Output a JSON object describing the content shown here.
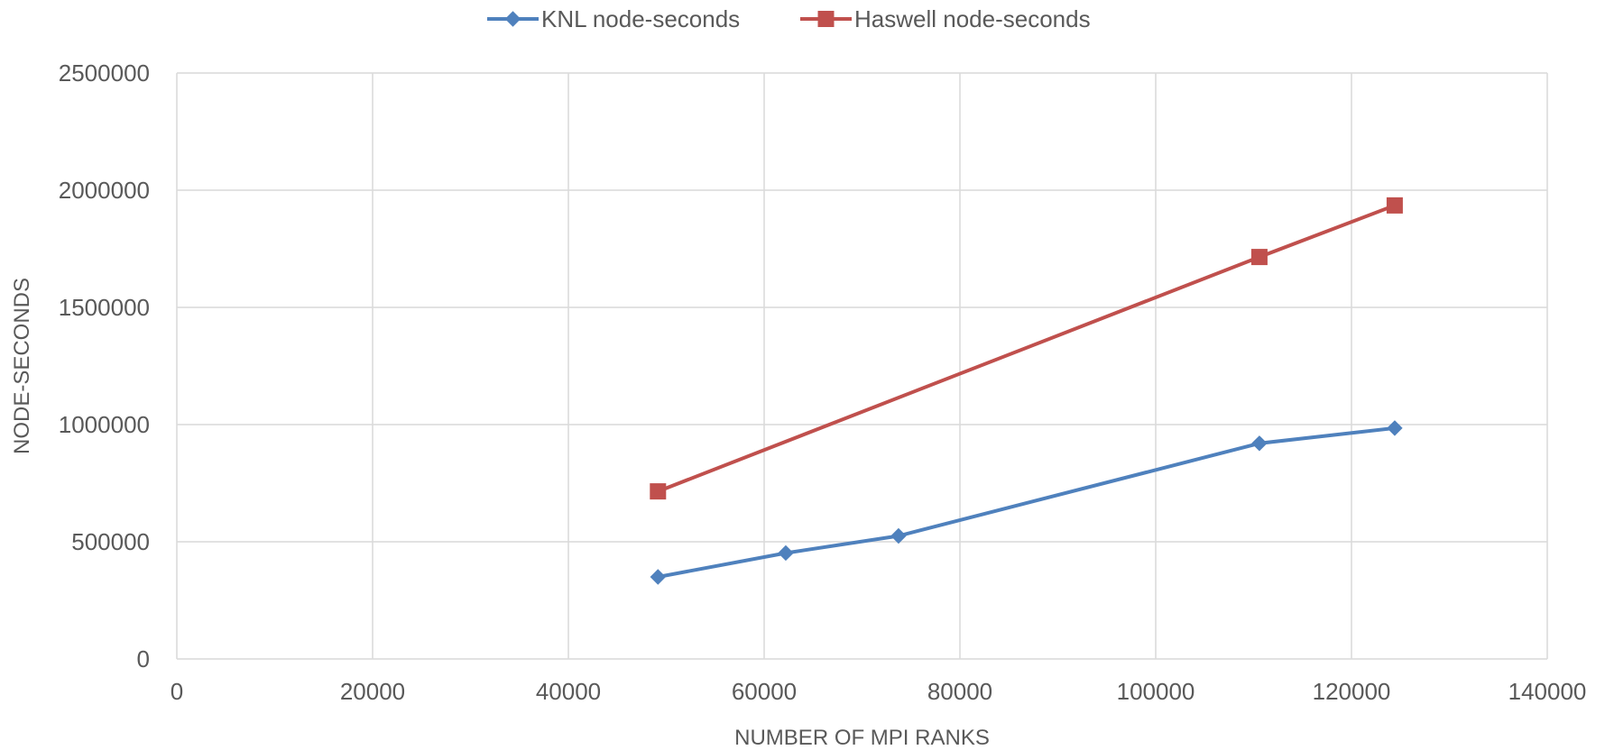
{
  "chart_data": {
    "type": "line",
    "title": "",
    "xlabel": "NUMBER OF MPI RANKS",
    "ylabel": "NODE-SECONDS",
    "xlim": [
      0,
      140000
    ],
    "ylim": [
      0,
      2500000
    ],
    "x_ticks": [
      0,
      20000,
      40000,
      60000,
      80000,
      100000,
      120000,
      140000
    ],
    "y_ticks": [
      0,
      500000,
      1000000,
      1500000,
      2000000,
      2500000
    ],
    "x_tick_labels": [
      "0",
      "20000",
      "40000",
      "60000",
      "80000",
      "100000",
      "120000",
      "140000"
    ],
    "y_tick_labels": [
      "0",
      "500000",
      "1000000",
      "1500000",
      "2000000",
      "2500000"
    ],
    "grid": true,
    "legend_position": "top",
    "series": [
      {
        "name": "KNL node-seconds",
        "color": "#4f81bd",
        "marker": "diamond",
        "x": [
          49152,
          62208,
          73728,
          110592,
          124416
        ],
        "y": [
          350000,
          452000,
          525000,
          920000,
          985000
        ]
      },
      {
        "name": "Haswell node-seconds",
        "color": "#c0504d",
        "marker": "square",
        "x": [
          49152,
          110592,
          124416
        ],
        "y": [
          715000,
          1715000,
          1935000
        ]
      }
    ]
  }
}
